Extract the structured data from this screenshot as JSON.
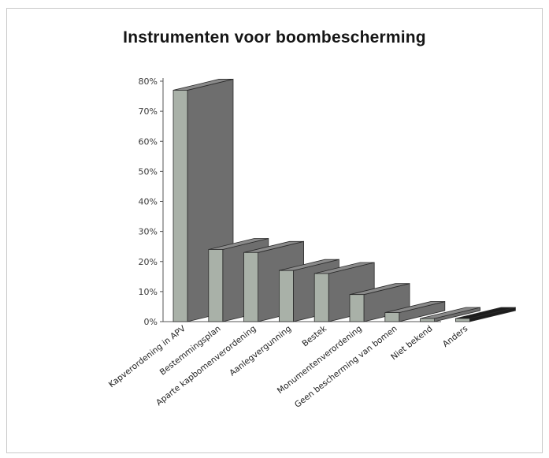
{
  "chart_data": {
    "type": "bar",
    "title": "Instrumenten voor boombescherming",
    "xlabel": "",
    "ylabel": "",
    "ylim": [
      0,
      80
    ],
    "yticks": [
      "0%",
      "10%",
      "20%",
      "30%",
      "40%",
      "50%",
      "60%",
      "70%",
      "80%"
    ],
    "categories": [
      "Kapverordening in APV",
      "Bestemmingsplan",
      "Aparte kapbomenverordening",
      "Aanlegvergunning",
      "Bestek",
      "Monumentenverordening",
      "Geen bescherming van bomen",
      "Niet bekend",
      "Anders"
    ],
    "values": [
      77,
      24,
      23,
      17,
      16,
      9,
      3,
      1,
      1
    ],
    "colors": {
      "front": "#a9b1a8",
      "side": "#6e6e6e",
      "top": "#8a8a8a",
      "last_side": "#1c1c1c",
      "axis": "#555555"
    },
    "grid": false,
    "legend": "none",
    "projection": "3d"
  }
}
